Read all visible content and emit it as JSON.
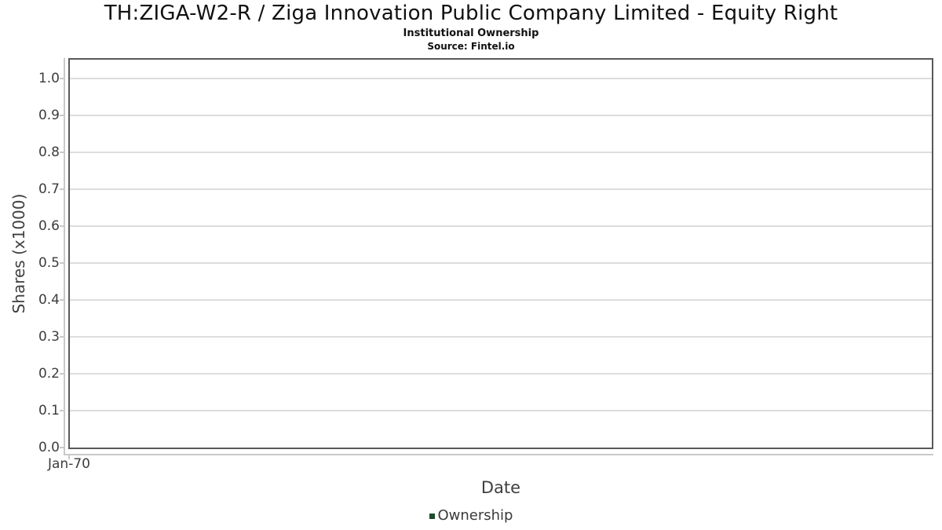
{
  "chart_data": {
    "type": "line",
    "title": "TH:ZIGA-W2-R / Ziga Innovation Public Company Limited - Equity Right",
    "subtitle": "Institutional Ownership",
    "source": "Source: Fintel.io",
    "xlabel": "Date",
    "ylabel": "Shares (x1000)",
    "x_ticks": [
      {
        "label": "Jan-70",
        "pos": 0
      }
    ],
    "y_ticks": [
      "0.0",
      "0.1",
      "0.2",
      "0.3",
      "0.4",
      "0.5",
      "0.6",
      "0.7",
      "0.8",
      "0.9",
      "1.0"
    ],
    "ylim": [
      0,
      1.051
    ],
    "grid": "horizontal",
    "legend": {
      "position": "bottom",
      "items": [
        {
          "label": "Ownership",
          "color": "#1e4d2b"
        }
      ]
    },
    "series": [
      {
        "name": "Ownership",
        "color": "#1e4d2b",
        "x": [],
        "values": []
      }
    ],
    "colors": {
      "plot_border": "#595959",
      "gridline": "#dddddd",
      "axis_line": "#c9c9c9",
      "tick_label_text": "#3d3d3d",
      "title_text": "#111111",
      "series_ownership": "#1e4d2b"
    }
  }
}
